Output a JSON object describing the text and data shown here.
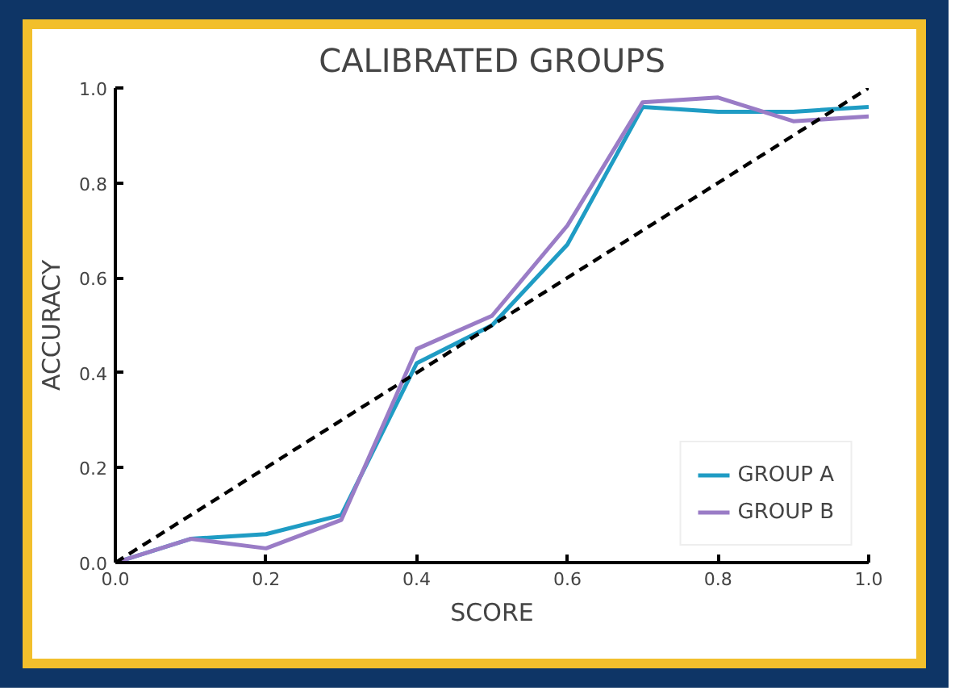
{
  "chart_data": {
    "type": "line",
    "title": "CALIBRATED GROUPS",
    "xlabel": "SCORE",
    "ylabel": "ACCURACY",
    "x": [
      0.0,
      0.1,
      0.2,
      0.3,
      0.4,
      0.5,
      0.6,
      0.7,
      0.8,
      0.9,
      1.0
    ],
    "series": [
      {
        "name": "GROUP A",
        "color": "#1f9cc4",
        "values": [
          0.0,
          0.05,
          0.06,
          0.1,
          0.42,
          0.5,
          0.67,
          0.96,
          0.95,
          0.95,
          0.96
        ]
      },
      {
        "name": "GROUP B",
        "color": "#9a7cc6",
        "values": [
          0.0,
          0.05,
          0.03,
          0.09,
          0.45,
          0.52,
          0.71,
          0.97,
          0.98,
          0.93,
          0.94
        ]
      },
      {
        "type": "line",
        "color": "#000000",
        "x": [
          0.0,
          1.0
        ],
        "values": [
          0.0,
          1.0
        ],
        "line_style": "dashed"
      }
    ],
    "xlim": [
      0,
      1
    ],
    "ylim": [
      0,
      1
    ],
    "xticks": [
      {
        "value": 0,
        "label": "0.0"
      },
      0.2,
      0.4,
      0.6,
      0.8,
      {
        "value": 1,
        "label": "1.0"
      }
    ],
    "yticks": [
      {
        "value": 0,
        "label": "0.0"
      },
      0.2,
      0.4,
      0.6,
      0.8,
      {
        "value": 1,
        "label": "1.0"
      }
    ],
    "grid": false,
    "legend": "bottom right",
    "marker": "none",
    "line_style": "solid"
  }
}
